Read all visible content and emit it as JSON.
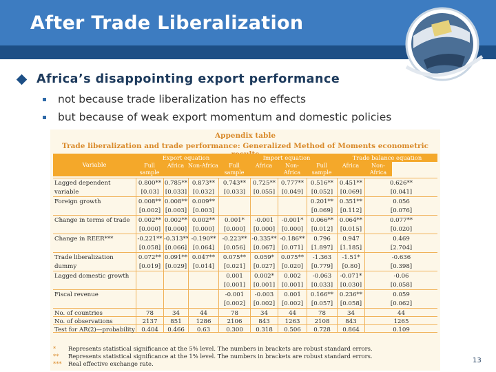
{
  "title": "After Trade Liberalization",
  "main_bullet": "Africa’s disappointing export performance",
  "sub_bullets": [
    "not because trade liberalization has no effects",
    "but because of weak export momentum and domestic policies"
  ],
  "table": {
    "appendix": "Appendix table",
    "caption": "Trade liberalization and trade performance: Generalized Method of Moments econometric results",
    "variable_header": "Variable",
    "groups": [
      "Export equation",
      "Import equation",
      "Trade balance equation"
    ],
    "subheads": [
      "Full sample",
      "Africa",
      "Non-Africa",
      "Full sample",
      "Africa",
      "Non-Africa",
      "Full sample",
      "Africa",
      "Non-Africa"
    ],
    "rows": [
      {
        "label": "Lagged dependent variable",
        "coef": [
          "0.800**",
          "0.785**",
          "0.873**",
          "0.743**",
          "0.725**",
          "0.777**",
          "0.516**",
          "0.451**",
          "0.626**"
        ],
        "se": [
          "[0.03]",
          "[0.033]",
          "[0.032]",
          "[0.033]",
          "[0.055]",
          "[0.049]",
          "[0.052]",
          "[0.069]",
          "[0.041]"
        ]
      },
      {
        "label": "Foreign growth",
        "coef": [
          "0.008**",
          "0.008**",
          "0.009**",
          "",
          "",
          "",
          "0.201**",
          "0.351**",
          "0.056"
        ],
        "se": [
          "[0.002]",
          "[0.003]",
          "[0.003]",
          "",
          "",
          "",
          "[0.069]",
          "[0.112]",
          "[0.076]"
        ]
      },
      {
        "label": "Change in terms of trade",
        "coef": [
          "0.002**",
          "0.002**",
          "0.002**",
          "0.001*",
          "-0.001",
          "-0.001*",
          "0.066**",
          "0.064**",
          "0.077**"
        ],
        "se": [
          "[0.000]",
          "[0.000]",
          "[0.000]",
          "[0.000]",
          "[0.000]",
          "[0.000]",
          "[0.012]",
          "[0.015]",
          "[0.020]"
        ]
      },
      {
        "label": "Change in REER***",
        "coef": [
          "-0.221**",
          "-0.313**",
          "-0.190**",
          "-0.223**",
          "-0.335**",
          "-0.186**",
          "0.796",
          "0.947",
          "0.469"
        ],
        "se": [
          "[0.058]",
          "[0.066]",
          "[0.064]",
          "[0.056]",
          "[0.067]",
          "[0.071]",
          "[1.897]",
          "[1.185]",
          "[2.704]"
        ]
      },
      {
        "label": "Trade liberalization dummy",
        "coef": [
          "0.072**",
          "0.091**",
          "0.047**",
          "0.075**",
          "0.059*",
          "0.075**",
          "-1.363",
          "-1.51*",
          "-0.636"
        ],
        "se": [
          "[0.019]",
          "[0.029]",
          "[0.014]",
          "[0.021]",
          "[0.027]",
          "[0.020]",
          "[0.779]",
          "[0.80]",
          "[0.398]"
        ]
      },
      {
        "label": "Lagged domestic growth",
        "coef": [
          "",
          "",
          "",
          "0.001",
          "0.002*",
          "0.002",
          "-0.063",
          "-0.071*",
          "-0.06"
        ],
        "se": [
          "",
          "",
          "",
          "[0.001]",
          "[0.001]",
          "[0.001]",
          "[0.033]",
          "[0.030]",
          "[0.058]"
        ]
      },
      {
        "label": "Fiscal revenue",
        "coef": [
          "",
          "",
          "",
          "-0.001",
          "-0.003",
          "0.001",
          "0.166**",
          "0.236**",
          "0.059"
        ],
        "se": [
          "",
          "",
          "",
          "[0.002]",
          "[0.002]",
          "[0.002]",
          "[0.057]",
          "[0.058]",
          "[0.062]"
        ]
      }
    ],
    "stats": [
      {
        "label": "No. of countries",
        "values": [
          "78",
          "34",
          "44",
          "78",
          "34",
          "44",
          "78",
          "34",
          "44"
        ]
      },
      {
        "label": "No. of observations",
        "values": [
          "2137",
          "851",
          "1286",
          "2106",
          "843",
          "1263",
          "2108",
          "843",
          "1265"
        ]
      },
      {
        "label": "Test for AR(2)—probability",
        "values": [
          "0.404",
          "0.466",
          "0.63",
          "0.300",
          "0.318",
          "0.506",
          "0.728",
          "0.864",
          "0.109"
        ]
      }
    ],
    "notes": [
      {
        "mark": "*",
        "text": "Represents statistical significance at the 5% level. The numbers in brackets are robust standard errors."
      },
      {
        "mark": "**",
        "text": "Represents statistical significance at the 1% level. The numbers in brackets are robust standard errors."
      },
      {
        "mark": "***",
        "text": "Real effective exchange rate."
      }
    ]
  },
  "page_number": "13",
  "colors": {
    "title_bar": "#3d7cc1",
    "header_orange": "#f4a82a",
    "table_bg": "#fdf7e8"
  }
}
